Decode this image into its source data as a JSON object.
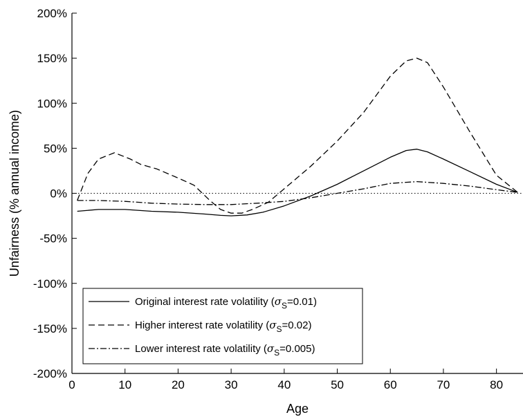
{
  "chart_data": {
    "type": "line",
    "xlabel": "Age",
    "ylabel": "Unfairness (% annual income)",
    "xlim": [
      0,
      85
    ],
    "ylim": [
      -200,
      200
    ],
    "x_ticks": [
      0,
      10,
      20,
      30,
      40,
      50,
      60,
      70,
      80
    ],
    "y_ticks": [
      200,
      150,
      100,
      50,
      0,
      -50,
      -100,
      -150,
      -200
    ],
    "y_tick_labels": [
      "200%",
      "150%",
      "100%",
      "50%",
      "0%",
      "-50%",
      "-100%",
      "-150%",
      "-200%"
    ],
    "grid": false,
    "reference_line": {
      "y": 0,
      "style": "dotted"
    },
    "legend_position": "bottom-left",
    "series": [
      {
        "name_prefix": "Original interest rate volatility (",
        "name_symbol": "σ",
        "name_subscript": "S",
        "name_suffix": "=0.01)",
        "line_style": "solid",
        "x": [
          1,
          5,
          10,
          15,
          20,
          25,
          28,
          30,
          33,
          36,
          40,
          45,
          50,
          55,
          60,
          63,
          65,
          67,
          70,
          75,
          80,
          84
        ],
        "y": [
          -20,
          -18,
          -18,
          -20,
          -21,
          -23,
          -24.5,
          -25,
          -24,
          -21,
          -14,
          -3,
          10,
          25,
          40,
          47.5,
          49,
          46,
          38,
          24,
          10,
          1
        ]
      },
      {
        "name_prefix": "Higher interest rate volatility (",
        "name_symbol": "σ",
        "name_subscript": "S",
        "name_suffix": "=0.02)",
        "line_style": "dashed",
        "x": [
          1,
          3,
          5,
          8,
          11,
          13,
          16,
          20,
          23,
          26,
          28,
          30,
          32,
          34,
          37,
          40,
          45,
          50,
          55,
          60,
          63,
          65,
          67,
          70,
          75,
          80,
          84
        ],
        "y": [
          -8,
          22,
          38,
          45,
          38,
          32,
          27,
          17,
          9,
          -8,
          -18,
          -22,
          -22,
          -18,
          -10,
          5,
          30,
          58,
          90,
          130,
          147,
          150,
          145,
          118,
          68,
          20,
          1
        ]
      },
      {
        "name_prefix": "Lower interest rate volatility (",
        "name_symbol": "σ",
        "name_subscript": "S",
        "name_suffix": "=0.005)",
        "line_style": "dashdot",
        "x": [
          1,
          5,
          10,
          15,
          20,
          25,
          30,
          35,
          40,
          45,
          50,
          55,
          60,
          65,
          70,
          75,
          80,
          84
        ],
        "y": [
          -8,
          -8,
          -9,
          -11,
          -12,
          -12.5,
          -12.5,
          -11,
          -9,
          -5,
          0,
          5,
          11,
          13,
          11,
          8,
          4,
          1
        ]
      }
    ]
  }
}
